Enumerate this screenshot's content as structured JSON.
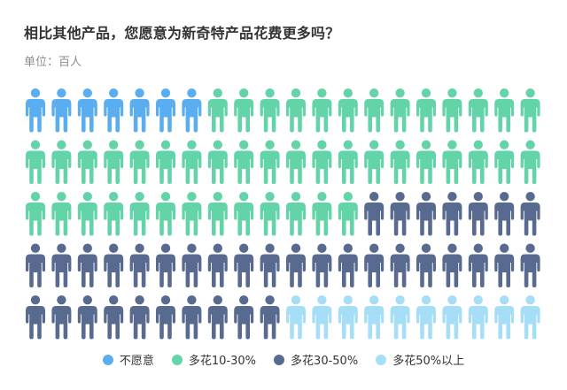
{
  "chart_data": {
    "type": "pictogram",
    "title": "相比其他产品，您愿意为新奇特产品花费更多吗？",
    "subtitle": "单位：百人",
    "units_per_icon": 1,
    "rows": 5,
    "columns": 20,
    "series": [
      {
        "name": "不愿意",
        "value": 7,
        "color": "#5aaef0"
      },
      {
        "name": "多花10-30%",
        "value": 46,
        "color": "#63d4a8"
      },
      {
        "name": "多花30-50%",
        "value": 37,
        "color": "#596a91"
      },
      {
        "name": "多花50%以上",
        "value": 10,
        "color": "#a6def8"
      }
    ],
    "legend_position": "bottom"
  }
}
